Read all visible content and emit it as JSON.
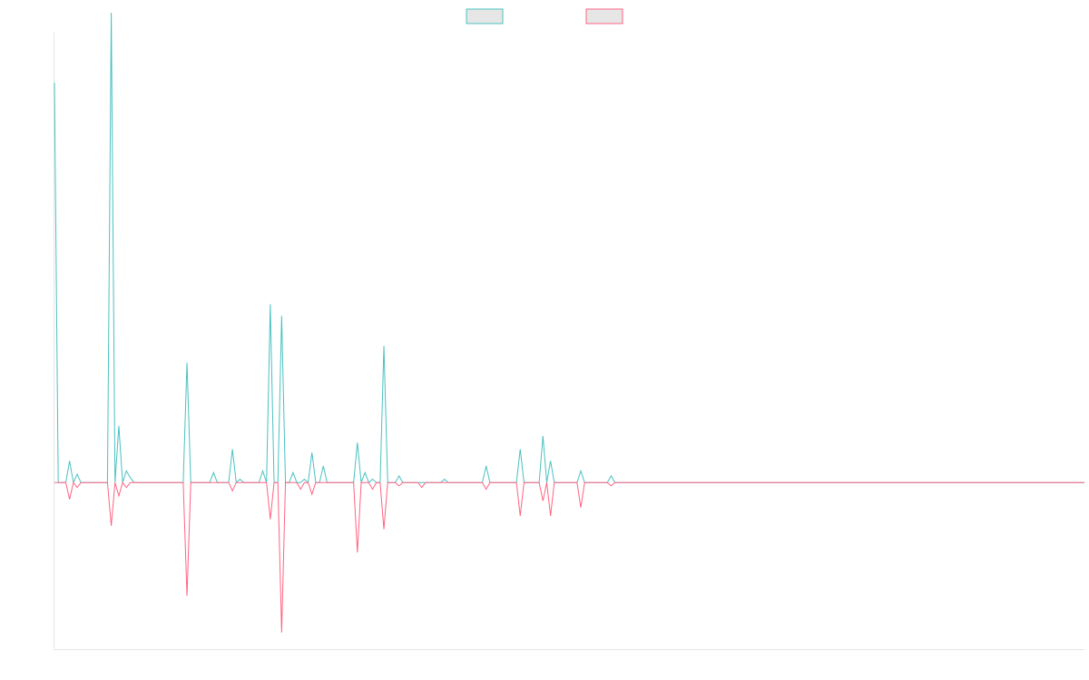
{
  "chart_data": {
    "type": "line",
    "title": "",
    "xlabel": "",
    "ylabel": "",
    "x_count": 273,
    "ylim": [
      -1,
      2.7
    ],
    "grid": false,
    "legend": "top-center",
    "series": [
      {
        "name": "",
        "color": "#4bc0c0",
        "fill": "#e6e6e6",
        "spikes": [
          [
            0,
            2.4
          ],
          [
            4,
            0.13
          ],
          [
            6,
            0.05
          ],
          [
            15,
            2.82
          ],
          [
            17,
            0.34
          ],
          [
            19,
            0.07
          ],
          [
            20,
            0.03
          ],
          [
            35,
            0.72
          ],
          [
            42,
            0.06
          ],
          [
            47,
            0.2
          ],
          [
            49,
            0.02
          ],
          [
            55,
            0.07
          ],
          [
            57,
            1.07
          ],
          [
            60,
            1.0
          ],
          [
            63,
            0.06
          ],
          [
            66,
            0.02
          ],
          [
            68,
            0.18
          ],
          [
            71,
            0.1
          ],
          [
            80,
            0.24
          ],
          [
            82,
            0.06
          ],
          [
            84,
            0.02
          ],
          [
            87,
            0.82
          ],
          [
            91,
            0.04
          ],
          [
            103,
            0.02
          ],
          [
            114,
            0.1
          ],
          [
            123,
            0.2
          ],
          [
            129,
            0.28
          ],
          [
            131,
            0.13
          ],
          [
            139,
            0.07
          ],
          [
            147,
            0.04
          ]
        ]
      },
      {
        "name": "",
        "color": "#ff6384",
        "fill": "#e6e6e6",
        "spikes": [
          [
            4,
            -0.1
          ],
          [
            6,
            -0.03
          ],
          [
            15,
            -0.26
          ],
          [
            17,
            -0.08
          ],
          [
            19,
            -0.03
          ],
          [
            35,
            -0.68
          ],
          [
            47,
            -0.05
          ],
          [
            57,
            -0.22
          ],
          [
            60,
            -0.9
          ],
          [
            65,
            -0.04
          ],
          [
            68,
            -0.07
          ],
          [
            80,
            -0.42
          ],
          [
            84,
            -0.04
          ],
          [
            87,
            -0.28
          ],
          [
            91,
            -0.02
          ],
          [
            97,
            -0.03
          ],
          [
            114,
            -0.04
          ],
          [
            123,
            -0.2
          ],
          [
            129,
            -0.11
          ],
          [
            131,
            -0.2
          ],
          [
            139,
            -0.15
          ],
          [
            147,
            -0.02
          ]
        ]
      }
    ]
  }
}
